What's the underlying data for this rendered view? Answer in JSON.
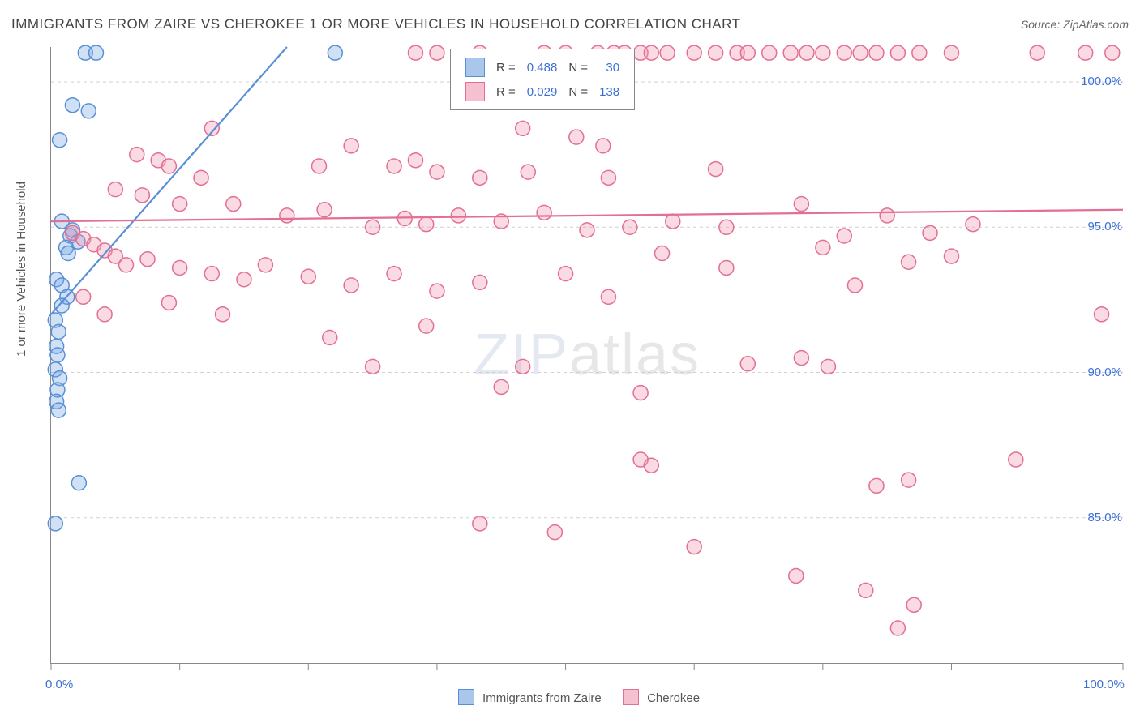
{
  "title": "IMMIGRANTS FROM ZAIRE VS CHEROKEE 1 OR MORE VEHICLES IN HOUSEHOLD CORRELATION CHART",
  "source": "Source: ZipAtlas.com",
  "watermark_bold": "ZIP",
  "watermark_thin": "atlas",
  "y_axis_label": "1 or more Vehicles in Household",
  "plot": {
    "bg": "#ffffff",
    "axis_color": "#888888",
    "grid_color": "#d0d0d0",
    "grid_dash": "4,4",
    "xlim": [
      0,
      100
    ],
    "ylim": [
      80,
      101.2
    ],
    "x_ticks": [
      0,
      12,
      24,
      36,
      48,
      60,
      72,
      84,
      100
    ],
    "x_tick_labels": {
      "0": "0.0%",
      "100": "100.0%"
    },
    "y_grid": [
      85,
      90,
      95,
      100
    ],
    "y_tick_labels": {
      "85": "85.0%",
      "90": "90.0%",
      "95": "95.0%",
      "100": "100.0%"
    },
    "marker_radius": 9,
    "marker_stroke_width": 1.5,
    "line_width": 2.2
  },
  "series": [
    {
      "name": "Immigrants from Zaire",
      "fill": "rgba(120,170,230,0.35)",
      "stroke": "#5a8fd6",
      "swatch_fill": "#a9c7ea",
      "swatch_border": "#5a8fd6",
      "R": "0.488",
      "N": "30",
      "regression": {
        "x1": 0,
        "y1": 92.0,
        "x2": 22,
        "y2": 101.2
      },
      "points": [
        [
          3.2,
          101.0
        ],
        [
          4.2,
          101.0
        ],
        [
          26.5,
          101.0
        ],
        [
          2.0,
          99.2
        ],
        [
          3.5,
          99.0
        ],
        [
          0.8,
          98.0
        ],
        [
          1.0,
          95.2
        ],
        [
          2.0,
          94.9
        ],
        [
          1.8,
          94.7
        ],
        [
          2.5,
          94.5
        ],
        [
          1.4,
          94.3
        ],
        [
          1.6,
          94.1
        ],
        [
          0.5,
          93.2
        ],
        [
          1.0,
          93.0
        ],
        [
          1.5,
          92.6
        ],
        [
          1.0,
          92.3
        ],
        [
          0.4,
          91.8
        ],
        [
          0.7,
          91.4
        ],
        [
          0.5,
          90.9
        ],
        [
          0.6,
          90.6
        ],
        [
          0.4,
          90.1
        ],
        [
          0.8,
          89.8
        ],
        [
          0.6,
          89.4
        ],
        [
          0.5,
          89.0
        ],
        [
          0.7,
          88.7
        ],
        [
          2.6,
          86.2
        ],
        [
          0.4,
          84.8
        ]
      ]
    },
    {
      "name": "Cherokee",
      "fill": "rgba(240,150,175,0.35)",
      "stroke": "#e36f94",
      "swatch_fill": "#f5c0cf",
      "swatch_border": "#e36f94",
      "R": "0.029",
      "N": "138",
      "regression": {
        "x1": 0,
        "y1": 95.2,
        "x2": 100,
        "y2": 95.6
      },
      "points": [
        [
          34,
          101.0
        ],
        [
          36,
          101.0
        ],
        [
          40,
          101.0
        ],
        [
          46,
          101.0
        ],
        [
          48,
          101.0
        ],
        [
          51,
          101.0
        ],
        [
          52.5,
          101.0
        ],
        [
          53.5,
          101.0
        ],
        [
          55,
          101.0
        ],
        [
          56,
          101.0
        ],
        [
          57.5,
          101.0
        ],
        [
          60,
          101.0
        ],
        [
          62,
          101.0
        ],
        [
          64,
          101.0
        ],
        [
          65,
          101.0
        ],
        [
          67,
          101.0
        ],
        [
          69,
          101.0
        ],
        [
          70.5,
          101.0
        ],
        [
          72,
          101.0
        ],
        [
          74,
          101.0
        ],
        [
          75.5,
          101.0
        ],
        [
          77,
          101.0
        ],
        [
          79,
          101.0
        ],
        [
          81,
          101.0
        ],
        [
          84,
          101.0
        ],
        [
          92,
          101.0
        ],
        [
          96.5,
          101.0
        ],
        [
          99,
          101.0
        ],
        [
          15,
          98.4
        ],
        [
          44,
          98.4
        ],
        [
          49,
          98.1
        ],
        [
          51.5,
          97.8
        ],
        [
          8,
          97.5
        ],
        [
          10,
          97.3
        ],
        [
          11,
          97.1
        ],
        [
          14,
          96.7
        ],
        [
          25,
          97.1
        ],
        [
          28,
          97.8
        ],
        [
          32,
          97.1
        ],
        [
          34,
          97.3
        ],
        [
          36,
          96.9
        ],
        [
          40,
          96.7
        ],
        [
          44.5,
          96.9
        ],
        [
          52,
          96.7
        ],
        [
          62,
          97.0
        ],
        [
          6,
          96.3
        ],
        [
          8.5,
          96.1
        ],
        [
          12,
          95.8
        ],
        [
          17,
          95.8
        ],
        [
          22,
          95.4
        ],
        [
          25.5,
          95.6
        ],
        [
          30,
          95.0
        ],
        [
          33,
          95.3
        ],
        [
          35,
          95.1
        ],
        [
          38,
          95.4
        ],
        [
          42,
          95.2
        ],
        [
          46,
          95.5
        ],
        [
          50,
          94.9
        ],
        [
          54,
          95.0
        ],
        [
          58,
          95.2
        ],
        [
          63,
          95.0
        ],
        [
          70,
          95.8
        ],
        [
          74,
          94.7
        ],
        [
          78,
          95.4
        ],
        [
          82,
          94.8
        ],
        [
          86,
          95.1
        ],
        [
          2,
          94.8
        ],
        [
          3,
          94.6
        ],
        [
          4,
          94.4
        ],
        [
          5,
          94.2
        ],
        [
          6,
          94.0
        ],
        [
          7,
          93.7
        ],
        [
          9,
          93.9
        ],
        [
          12,
          93.6
        ],
        [
          15,
          93.4
        ],
        [
          18,
          93.2
        ],
        [
          20,
          93.7
        ],
        [
          24,
          93.3
        ],
        [
          28,
          93.0
        ],
        [
          32,
          93.4
        ],
        [
          36,
          92.8
        ],
        [
          40,
          93.1
        ],
        [
          48,
          93.4
        ],
        [
          52,
          92.6
        ],
        [
          57,
          94.1
        ],
        [
          63,
          93.6
        ],
        [
          72,
          94.3
        ],
        [
          75,
          93.0
        ],
        [
          80,
          93.8
        ],
        [
          84,
          94.0
        ],
        [
          98,
          92.0
        ],
        [
          3,
          92.6
        ],
        [
          5,
          92.0
        ],
        [
          11,
          92.4
        ],
        [
          16,
          92.0
        ],
        [
          26,
          91.2
        ],
        [
          30,
          90.2
        ],
        [
          35,
          91.6
        ],
        [
          44,
          90.2
        ],
        [
          42,
          89.5
        ],
        [
          55,
          89.3
        ],
        [
          65,
          90.3
        ],
        [
          70,
          90.5
        ],
        [
          72.5,
          90.2
        ],
        [
          55,
          87.0
        ],
        [
          56,
          86.8
        ],
        [
          80,
          86.3
        ],
        [
          90,
          87.0
        ],
        [
          77,
          86.1
        ],
        [
          40,
          84.8
        ],
        [
          47,
          84.5
        ],
        [
          60,
          84.0
        ],
        [
          69.5,
          83.0
        ],
        [
          76,
          82.5
        ],
        [
          80.5,
          82.0
        ],
        [
          79,
          81.2
        ]
      ]
    }
  ],
  "legend_series_label1": "Immigrants from Zaire",
  "legend_series_label2": "Cherokee",
  "legend_headers": {
    "R": "R =",
    "N": "N ="
  }
}
